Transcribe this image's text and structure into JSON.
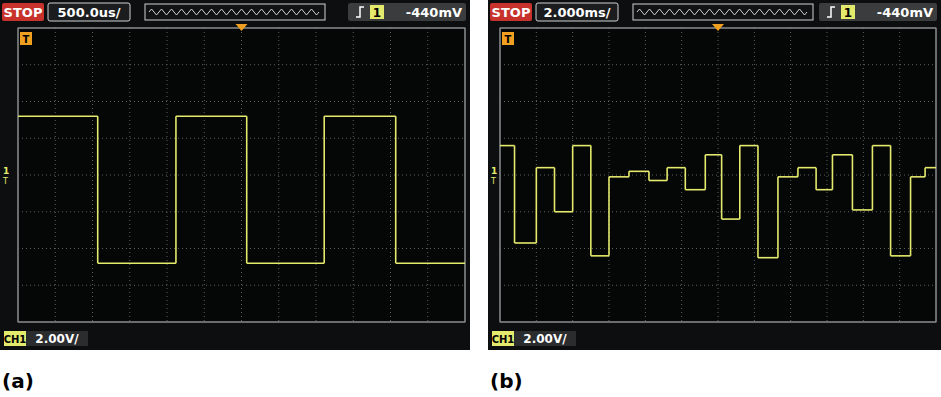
{
  "chart_data": [
    {
      "type": "line",
      "title": "(a)",
      "annotations": [
        "STOP",
        "500.0us/",
        "1",
        "-440mV",
        "CH1",
        "2.00V/",
        "T"
      ],
      "x": [
        -3000,
        -1930,
        -880,
        70,
        1110,
        2070
      ],
      "values": [
        3.2,
        -4.8,
        3.2,
        -4.8,
        3.2,
        -4.8
      ],
      "color": "#e4ea6c",
      "line_style": "step",
      "xlim": [
        -3000,
        3000
      ],
      "ylim": [
        -8,
        8
      ],
      "xticks": [
        -3000,
        -2500,
        -2000,
        -1500,
        -1000,
        -500,
        0,
        500,
        1000,
        1500,
        2000,
        2500,
        3000
      ],
      "yticks": [
        -8,
        -6,
        -4,
        -2,
        0,
        2,
        4,
        6,
        8
      ],
      "grid": true,
      "tick_labels": false
    },
    {
      "type": "line",
      "title": "(b)",
      "annotations": [
        "STOP",
        "2.000ms/",
        "1",
        "-440mV",
        "CH1",
        "2.00V/",
        "T"
      ],
      "x": [
        -12,
        -11.2,
        -10.0,
        -9.0,
        -8.0,
        -7.0,
        -6.0,
        -4.9,
        -3.8,
        -2.8,
        -1.8,
        -0.7,
        0.2,
        1.2,
        2.2,
        3.3,
        4.4,
        5.4,
        6.3,
        7.4,
        8.5,
        9.5,
        10.6,
        11.4
      ],
      "values": [
        1.6,
        -3.7,
        0.4,
        -2.0,
        1.6,
        -4.4,
        -0.1,
        0.2,
        -0.3,
        0.4,
        -0.8,
        1.1,
        -2.4,
        1.6,
        -4.5,
        -0.1,
        0.4,
        -0.8,
        1.1,
        -1.9,
        1.6,
        -4.4,
        -0.1,
        0.4
      ],
      "color": "#e4ea6c",
      "line_style": "step",
      "xlim": [
        -12,
        12
      ],
      "ylim": [
        -8,
        8
      ],
      "xticks": [
        -12,
        -10,
        -8,
        -6,
        -4,
        -2,
        0,
        2,
        4,
        6,
        8,
        10,
        12
      ],
      "yticks": [
        -8,
        -6,
        -4,
        -2,
        0,
        2,
        4,
        6,
        8
      ],
      "grid": true,
      "tick_labels": false
    }
  ]
}
